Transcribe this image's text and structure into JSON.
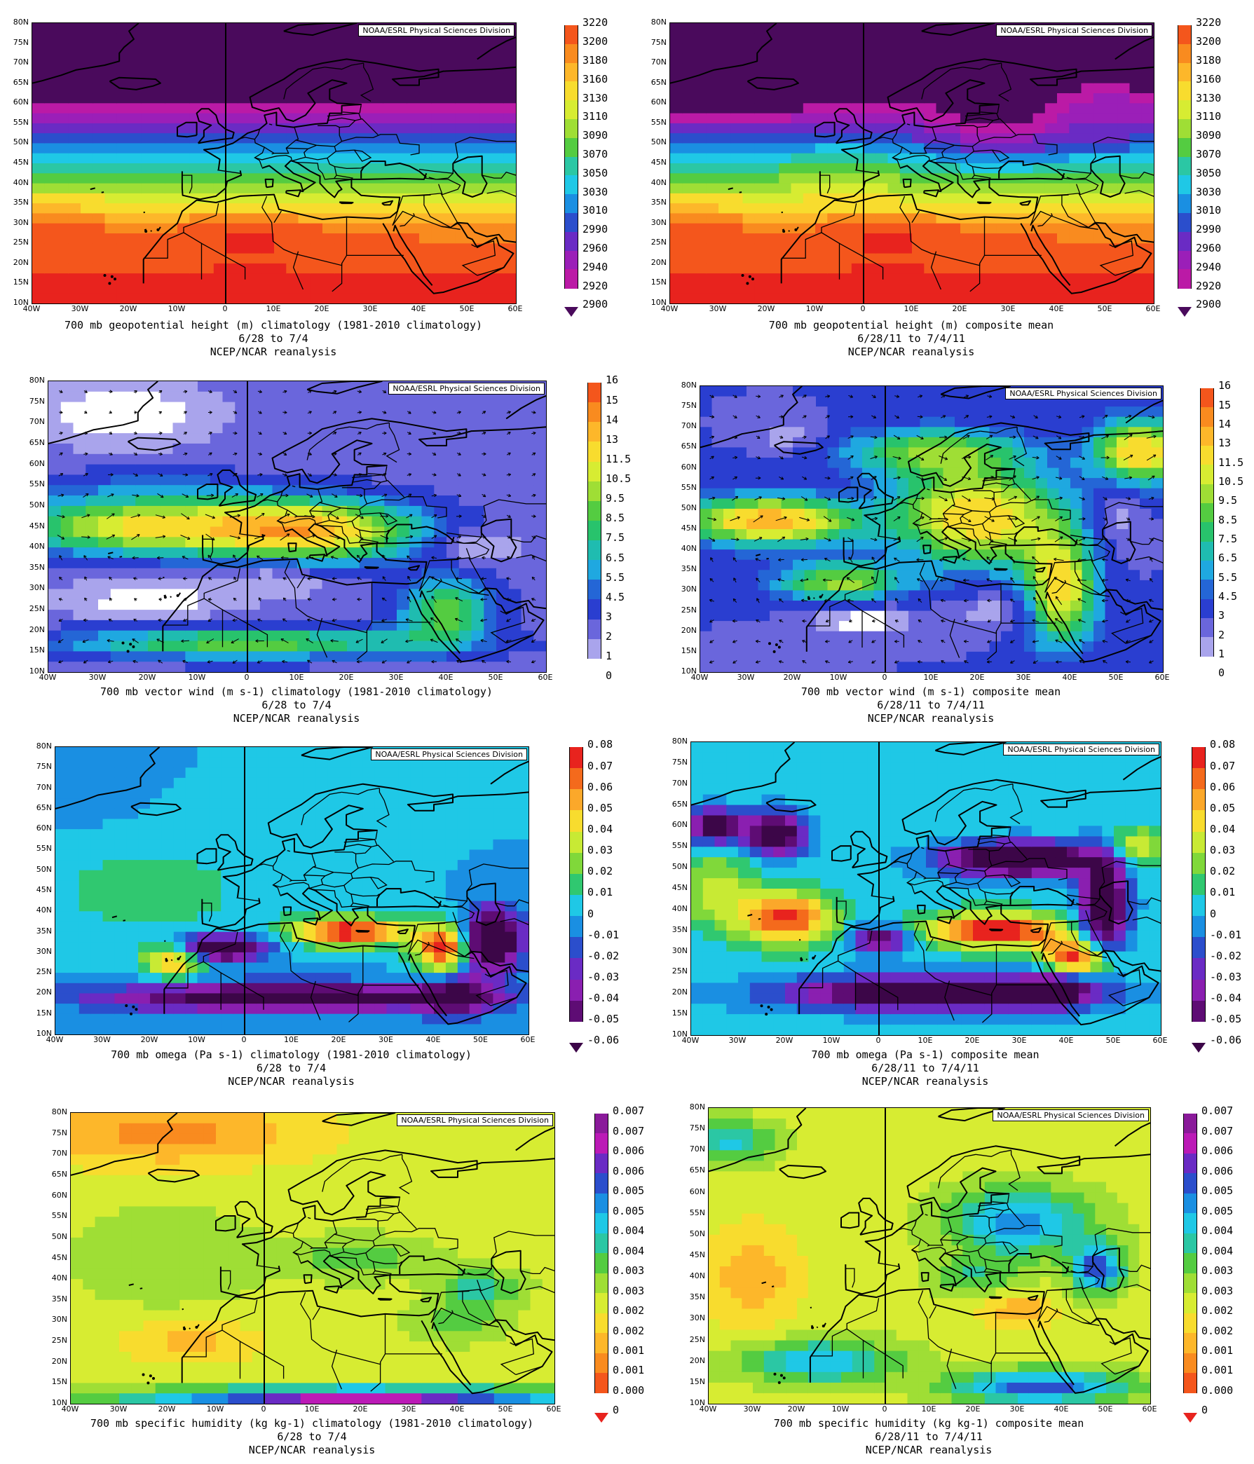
{
  "credit": "NOAA/ESRL Physical Sciences Division",
  "lat_labels": [
    "80N",
    "75N",
    "70N",
    "65N",
    "60N",
    "55N",
    "50N",
    "45N",
    "40N",
    "35N",
    "30N",
    "25N",
    "20N",
    "15N",
    "10N"
  ],
  "lon_labels": [
    "40W",
    "30W",
    "20W",
    "10W",
    "0",
    "10E",
    "20E",
    "30E",
    "40E",
    "50E",
    "60E"
  ],
  "panels": [
    {
      "id": "p1",
      "var": "height",
      "caption": [
        "700 mb geopotential height (m) climatology (1981-2010 climatology)",
        "6/28    to 7/4",
        "NCEP/NCAR reanalysis"
      ]
    },
    {
      "id": "p2",
      "var": "height",
      "caption": [
        "700 mb geopotential height (m) composite mean",
        "6/28/11   to 7/4/11",
        "NCEP/NCAR reanalysis"
      ]
    },
    {
      "id": "p3",
      "var": "wind",
      "caption": [
        "700 mb vector wind (m s-1) climatology (1981-2010 climatology)",
        "6/28    to 7/4",
        "NCEP/NCAR reanalysis"
      ]
    },
    {
      "id": "p4",
      "var": "wind",
      "caption": [
        "700 mb vector wind (m s-1) composite mean",
        "6/28/11   to 7/4/11",
        "NCEP/NCAR reanalysis"
      ]
    },
    {
      "id": "p5",
      "var": "omega",
      "caption": [
        "700 mb omega (Pa s-1) climatology (1981-2010 climatology)",
        "6/28    to 7/4",
        "NCEP/NCAR reanalysis"
      ]
    },
    {
      "id": "p6",
      "var": "omega",
      "caption": [
        "700 mb omega (Pa s-1) composite mean",
        "6/28/11   to 7/4/11",
        "NCEP/NCAR reanalysis"
      ]
    },
    {
      "id": "p7",
      "var": "humidity",
      "caption": [
        "700 mb specific humidity (kg kg-1) climatology (1981-2010 climatology)",
        "6/28    to 7/4",
        "NCEP/NCAR reanalysis"
      ]
    },
    {
      "id": "p8",
      "var": "humidity",
      "caption": [
        "700 mb specific humidity (kg kg-1) composite mean",
        "6/28/11   to 7/4/11",
        "NCEP/NCAR reanalysis"
      ]
    }
  ],
  "colorbars": {
    "height": {
      "labels": [
        "3220",
        "3200",
        "3180",
        "3160",
        "3130",
        "3110",
        "3090",
        "3070",
        "3050",
        "3030",
        "3010",
        "2990",
        "2960",
        "2940",
        "2920",
        "2900"
      ],
      "colors": [
        "#e8231e",
        "#f4561c",
        "#f98b1f",
        "#fdb72a",
        "#f8dc2e",
        "#d7ec32",
        "#9fde35",
        "#54cc41",
        "#2bc7a4",
        "#1fc8e6",
        "#1a8fe2",
        "#2b4ecc",
        "#6a2bc4",
        "#9b1fb8",
        "#bb1aa6",
        "#4a0a5c"
      ]
    },
    "wind": {
      "labels": [
        "16",
        "15",
        "14",
        "13",
        "11.5",
        "10.5",
        "9.5",
        "8.5",
        "7.5",
        "6.5",
        "5.5",
        "4.5",
        "3",
        "2",
        "1",
        "0"
      ],
      "colors": [
        "#e8231e",
        "#f4561c",
        "#f98b1f",
        "#fdb72a",
        "#f8dc2e",
        "#d7ec32",
        "#9fde35",
        "#54cc41",
        "#28c36c",
        "#1fbcb0",
        "#1fa8e0",
        "#2466d6",
        "#2a3ed0",
        "#6a66dc",
        "#a9a4ec",
        "#ffffff"
      ]
    },
    "omega": {
      "labels": [
        "0.08",
        "0.07",
        "0.06",
        "0.05",
        "0.04",
        "0.03",
        "0.02",
        "0.01",
        "0",
        "-0.01",
        "-0.02",
        "-0.03",
        "-0.04",
        "-0.05",
        "-0.06"
      ],
      "colors": [
        "#c0101a",
        "#e8231e",
        "#f46a1c",
        "#fba82a",
        "#f8dc2e",
        "#c8ea34",
        "#80d83a",
        "#30c870",
        "#1fc8e6",
        "#1a8fe2",
        "#2b4ecc",
        "#6a2bc4",
        "#8a1fb0",
        "#5e0c74",
        "#3c0648"
      ]
    },
    "humidity": {
      "labels": [
        "0.007",
        "0.007",
        "0.006",
        "0.006",
        "0.005",
        "0.005",
        "0.004",
        "0.004",
        "0.003",
        "0.003",
        "0.002",
        "0.002",
        "0.001",
        "0.001",
        "0.000",
        "0"
      ],
      "colors": [
        "#4a0a5c",
        "#8a1a9a",
        "#bb1ab6",
        "#6a2bc4",
        "#2b4ecc",
        "#1a8fe2",
        "#1fc8e6",
        "#2bc7a4",
        "#54cc41",
        "#9fde35",
        "#d7ec32",
        "#f8dc2e",
        "#fdb72a",
        "#f98b1f",
        "#f4561c",
        "#e8231e"
      ]
    }
  }
}
